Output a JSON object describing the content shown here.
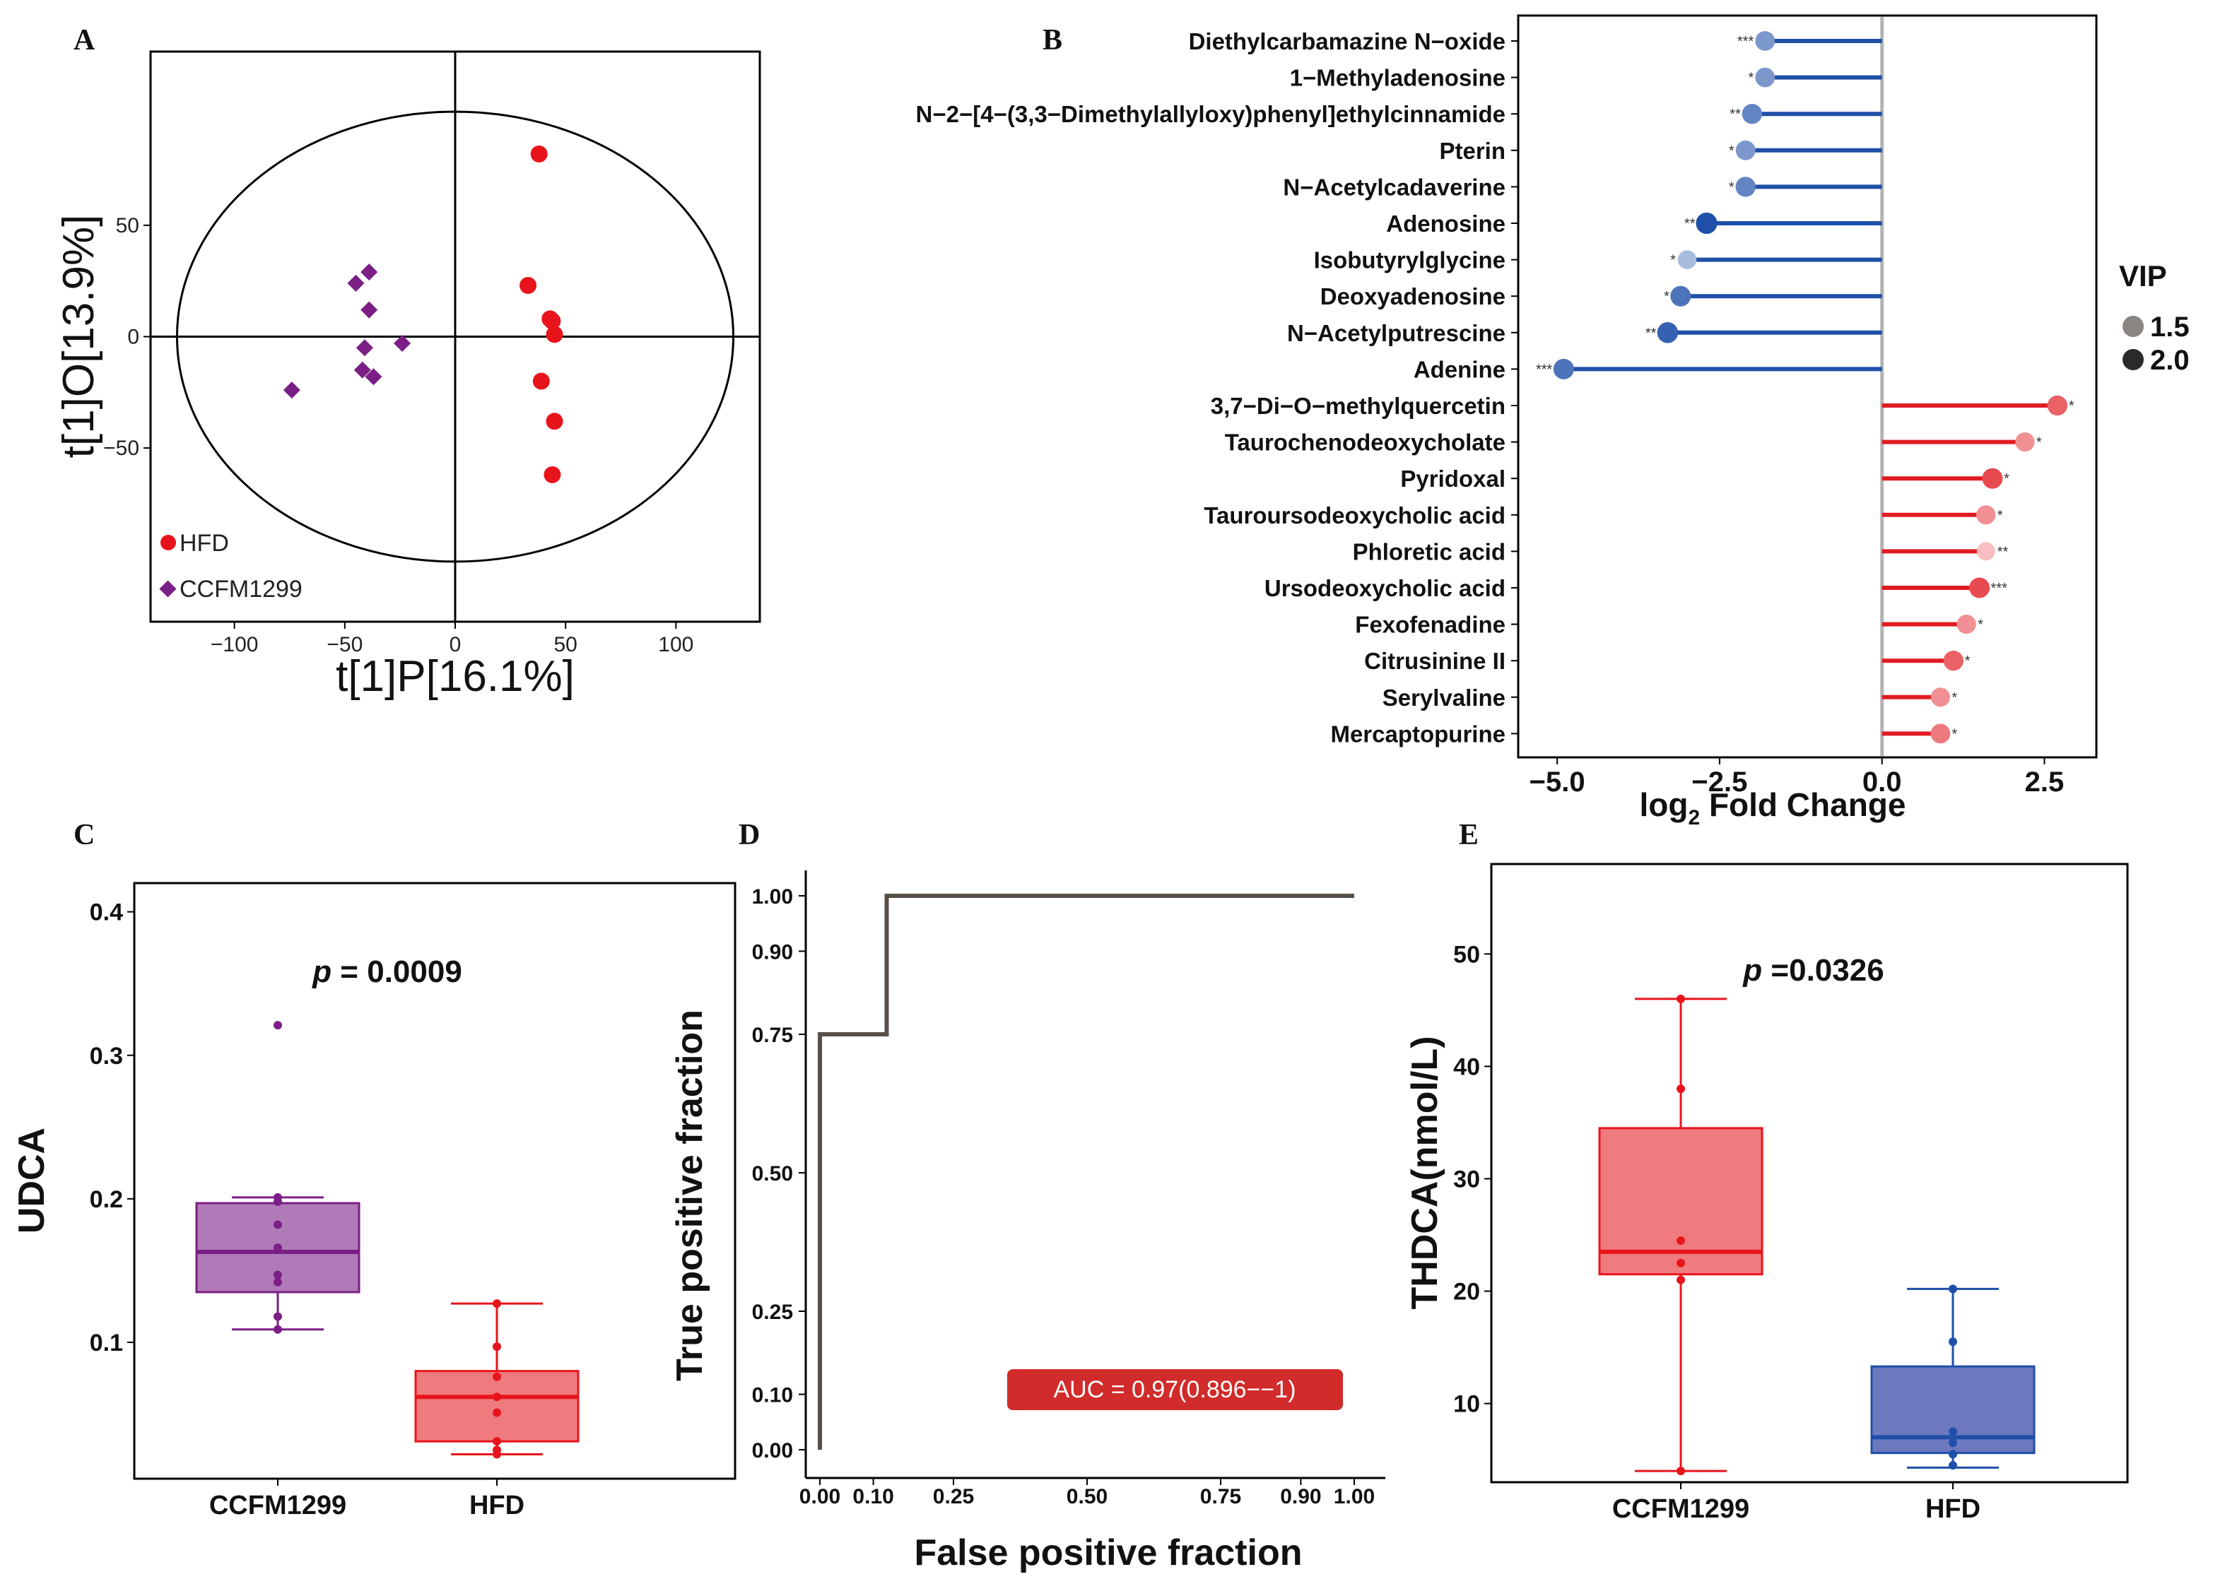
{
  "colors": {
    "hfd": "#e8141c",
    "ccfm": "#7b1f86",
    "ccfm_fill": "#b07ab8",
    "hfd_fill": "#f07b7e",
    "down": "#1f4fa8",
    "up": "#e11b22",
    "e_blue_fill": "#6c79bf",
    "roc_line": "#575049",
    "auc_box": "#d12b2b"
  },
  "panels": {
    "A": "A",
    "B": "B",
    "C": "C",
    "D": "D",
    "E": "E"
  },
  "chart_data": [
    {
      "id": "A",
      "type": "scatter",
      "xlabel": "t[1]P[16.1%]",
      "ylabel": "t[1]O[13.9%]",
      "xlim": [
        -138,
        138
      ],
      "ylim": [
        -128,
        128
      ],
      "xticks": [
        "−100",
        "−50",
        "0",
        "50",
        "100"
      ],
      "xtick_values": [
        -100,
        -50,
        0,
        50,
        100
      ],
      "yticks": [
        "50",
        "0",
        "−50"
      ],
      "ytick_values": [
        50,
        0,
        -50
      ],
      "ellipse": {
        "rx": 126,
        "ry": 101
      },
      "series": [
        {
          "name": "HFD",
          "marker": "circle",
          "color": "#e8141c",
          "x": [
            38,
            33,
            43,
            44,
            45,
            39,
            45,
            44
          ],
          "y": [
            82,
            23,
            8,
            7,
            1,
            -20,
            -38,
            -62
          ]
        },
        {
          "name": "CCFM1299",
          "marker": "diamond",
          "color": "#7b1f86",
          "x": [
            -45,
            -39,
            -39,
            -41,
            -24,
            -42,
            -37,
            -74
          ],
          "y": [
            24,
            29,
            12,
            -5,
            -3,
            -15,
            -18,
            -24
          ]
        }
      ],
      "legend": [
        "HFD",
        "CCFM1299"
      ],
      "legend_position": "bottom-left"
    },
    {
      "id": "B",
      "type": "lollipop",
      "xlabel": "log",
      "xlabel_sub": "2",
      "xlabel_tail": " Fold Change",
      "xlim": [
        -5.6,
        3.3
      ],
      "xticks": [
        "−5.0",
        "−2.5",
        "0.0",
        "2.5"
      ],
      "xtick_values": [
        -5,
        -2.5,
        0,
        2.5
      ],
      "legend_title": "VIP",
      "legend": [
        "1.5",
        "2.0"
      ],
      "metabolites": [
        {
          "name": "Diethylcarbamazine N−oxide",
          "fc": -1.8,
          "vip": 1.7,
          "sig": "***"
        },
        {
          "name": "1−Methyladenosine",
          "fc": -1.8,
          "vip": 1.7,
          "sig": "*"
        },
        {
          "name": "N−2−[4−(3,3−Dimethylallyloxy)phenyl]ethylcinnamide",
          "fc": -2.0,
          "vip": 1.8,
          "sig": "**"
        },
        {
          "name": "Pterin",
          "fc": -2.1,
          "vip": 1.7,
          "sig": "*"
        },
        {
          "name": "N−Acetylcadaverine",
          "fc": -2.1,
          "vip": 1.8,
          "sig": "*"
        },
        {
          "name": "Adenosine",
          "fc": -2.7,
          "vip": 2.1,
          "sig": "**"
        },
        {
          "name": "Isobutyrylglycine",
          "fc": -3.0,
          "vip": 1.5,
          "sig": "*"
        },
        {
          "name": "Deoxyadenosine",
          "fc": -3.1,
          "vip": 1.9,
          "sig": "*"
        },
        {
          "name": "N−Acetylputrescine",
          "fc": -3.3,
          "vip": 2.0,
          "sig": "**"
        },
        {
          "name": "Adenine",
          "fc": -4.9,
          "vip": 1.9,
          "sig": "***"
        },
        {
          "name": "3,7−Di−O−methylquercetin",
          "fc": 2.7,
          "vip": 1.8,
          "sig": "*"
        },
        {
          "name": "Taurochenodeoxycholate",
          "fc": 2.2,
          "vip": 1.6,
          "sig": "*"
        },
        {
          "name": "Pyridoxal",
          "fc": 1.7,
          "vip": 1.9,
          "sig": "*"
        },
        {
          "name": "Tauroursodeoxycholic acid",
          "fc": 1.6,
          "vip": 1.6,
          "sig": "*"
        },
        {
          "name": "Phloretic acid",
          "fc": 1.6,
          "vip": 1.4,
          "sig": "**"
        },
        {
          "name": "Ursodeoxycholic acid",
          "fc": 1.5,
          "vip": 1.9,
          "sig": "***"
        },
        {
          "name": "Fexofenadine",
          "fc": 1.3,
          "vip": 1.6,
          "sig": "*"
        },
        {
          "name": "Citrusinine II",
          "fc": 1.1,
          "vip": 1.8,
          "sig": "*"
        },
        {
          "name": "Serylvaline",
          "fc": 0.9,
          "vip": 1.6,
          "sig": "*"
        },
        {
          "name": "Mercaptopurine",
          "fc": 0.9,
          "vip": 1.7,
          "sig": "*"
        }
      ]
    },
    {
      "id": "C",
      "type": "box",
      "ylabel": "UDCA",
      "ylim": [
        0.005,
        0.42
      ],
      "yticks": [
        "0.1",
        "0.2",
        "0.3",
        "0.4"
      ],
      "ytick_values": [
        0.1,
        0.2,
        0.3,
        0.4
      ],
      "categories": [
        "CCFM1299",
        "HFD"
      ],
      "annotation_p": "p",
      "annotation_rest": " = 0.0009",
      "boxes": [
        {
          "name": "CCFM1299",
          "min": 0.109,
          "q1": 0.135,
          "median": 0.163,
          "q3": 0.197,
          "max": 0.201,
          "points": [
            0.321,
            0.201,
            0.198,
            0.182,
            0.166,
            0.147,
            0.142,
            0.118,
            0.109
          ]
        },
        {
          "name": "HFD",
          "min": 0.022,
          "q1": 0.031,
          "median": 0.062,
          "q3": 0.08,
          "max": 0.127,
          "points": [
            0.127,
            0.097,
            0.076,
            0.062,
            0.051,
            0.031,
            0.025,
            0.022
          ]
        }
      ]
    },
    {
      "id": "D",
      "type": "line",
      "xlabel": "False positive fraction",
      "ylabel": "True positive fraction",
      "xlim": [
        -0.02,
        1.02
      ],
      "ylim": [
        -0.02,
        1.02
      ],
      "xticks": [
        "0.00",
        "0.10",
        "0.25",
        "0.50",
        "0.75",
        "0.90",
        "1.00"
      ],
      "yticks": [
        "0.00",
        "0.10",
        "0.25",
        "0.50",
        "0.75",
        "0.90",
        "1.00"
      ],
      "tick_values": [
        0,
        0.1,
        0.25,
        0.5,
        0.75,
        0.9,
        1
      ],
      "x": [
        0,
        0,
        0.125,
        0.125,
        1
      ],
      "y": [
        0,
        0.75,
        0.75,
        1,
        1
      ],
      "auc_label": "AUC = 0.97(0.896−−1)"
    },
    {
      "id": "E",
      "type": "box",
      "ylabel": "THDCA(nmol/L)",
      "ylim": [
        3,
        58
      ],
      "yticks": [
        "10",
        "20",
        "30",
        "40",
        "50"
      ],
      "ytick_values": [
        10,
        20,
        30,
        40,
        50
      ],
      "categories": [
        "CCFM1299",
        "HFD"
      ],
      "annotation_p": "p",
      "annotation_rest": " =0.0326",
      "boxes": [
        {
          "name": "CCFM1299",
          "min": 4,
          "q1": 21.5,
          "median": 23.5,
          "q3": 34.5,
          "max": 46,
          "points": [
            46,
            38,
            24.5,
            22.5,
            21,
            4
          ]
        },
        {
          "name": "HFD",
          "min": 4.3,
          "q1": 5.6,
          "median": 7,
          "q3": 13.3,
          "max": 20.2,
          "points": [
            20.2,
            15.5,
            7.5,
            6.5,
            5.5,
            4.5
          ]
        }
      ]
    }
  ]
}
